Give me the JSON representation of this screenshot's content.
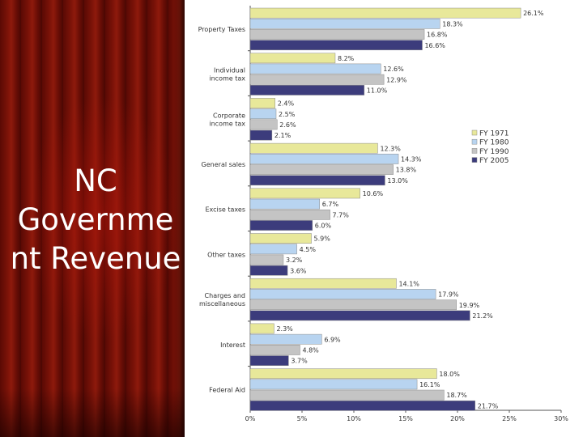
{
  "slide": {
    "title_lines": [
      "NC",
      "Governme",
      "nt Revenue"
    ]
  },
  "chart_data": {
    "type": "bar",
    "orientation": "horizontal",
    "categories": [
      [
        "Property Taxes"
      ],
      [
        "Individual",
        "income tax"
      ],
      [
        "Corporate",
        "income tax"
      ],
      [
        "General sales"
      ],
      [
        "Excise taxes"
      ],
      [
        "Other taxes"
      ],
      [
        "Charges and",
        "miscellaneous"
      ],
      [
        "Interest"
      ],
      [
        "Federal Aid"
      ]
    ],
    "series": [
      {
        "name": "FY 1971",
        "color": "#e8e89a",
        "values": [
          26.1,
          8.2,
          2.4,
          12.3,
          10.6,
          5.9,
          14.1,
          2.3,
          18.0
        ]
      },
      {
        "name": "FY 1980",
        "color": "#b8d4f0",
        "values": [
          18.3,
          12.6,
          2.5,
          14.3,
          6.7,
          4.5,
          17.9,
          6.9,
          16.1
        ]
      },
      {
        "name": "FY 1990",
        "color": "#c4c4c4",
        "values": [
          16.8,
          12.9,
          2.6,
          13.8,
          7.7,
          3.2,
          19.9,
          4.8,
          18.7
        ]
      },
      {
        "name": "FY 2005",
        "color": "#3c3c7c",
        "values": [
          16.6,
          11.0,
          2.1,
          13.0,
          6.0,
          3.6,
          21.2,
          3.7,
          21.7
        ]
      }
    ],
    "value_labels": [
      [
        "26.1%",
        "8.2%",
        "2.4%",
        "12.3%",
        "10.6%",
        "5.9%",
        "14.1%",
        "2.3%",
        "18.0%"
      ],
      [
        "18.3%",
        "12.6%",
        "2.5%",
        "14.3%",
        "6.7%",
        "4.5%",
        "17.9%",
        "6.9%",
        "16.1%"
      ],
      [
        "16.8%",
        "12.9%",
        "2.6%",
        "13.8%",
        "7.7%",
        "3.2%",
        "19.9%",
        "4.8%",
        "18.7%"
      ],
      [
        "16.6%",
        "11.0%",
        "2.1%",
        "13.0%",
        "6.0%",
        "3.6%",
        "21.2%",
        "3.7%",
        "21.7%"
      ]
    ],
    "xlim": [
      0,
      30
    ],
    "x_ticks": [
      0,
      5,
      10,
      15,
      20,
      25,
      30
    ],
    "x_tick_labels": [
      "0%",
      "5%",
      "10%",
      "15%",
      "20%",
      "25%",
      "30%"
    ],
    "legend_placement": "right",
    "grid": false,
    "title": "",
    "xlabel": "",
    "ylabel": ""
  }
}
